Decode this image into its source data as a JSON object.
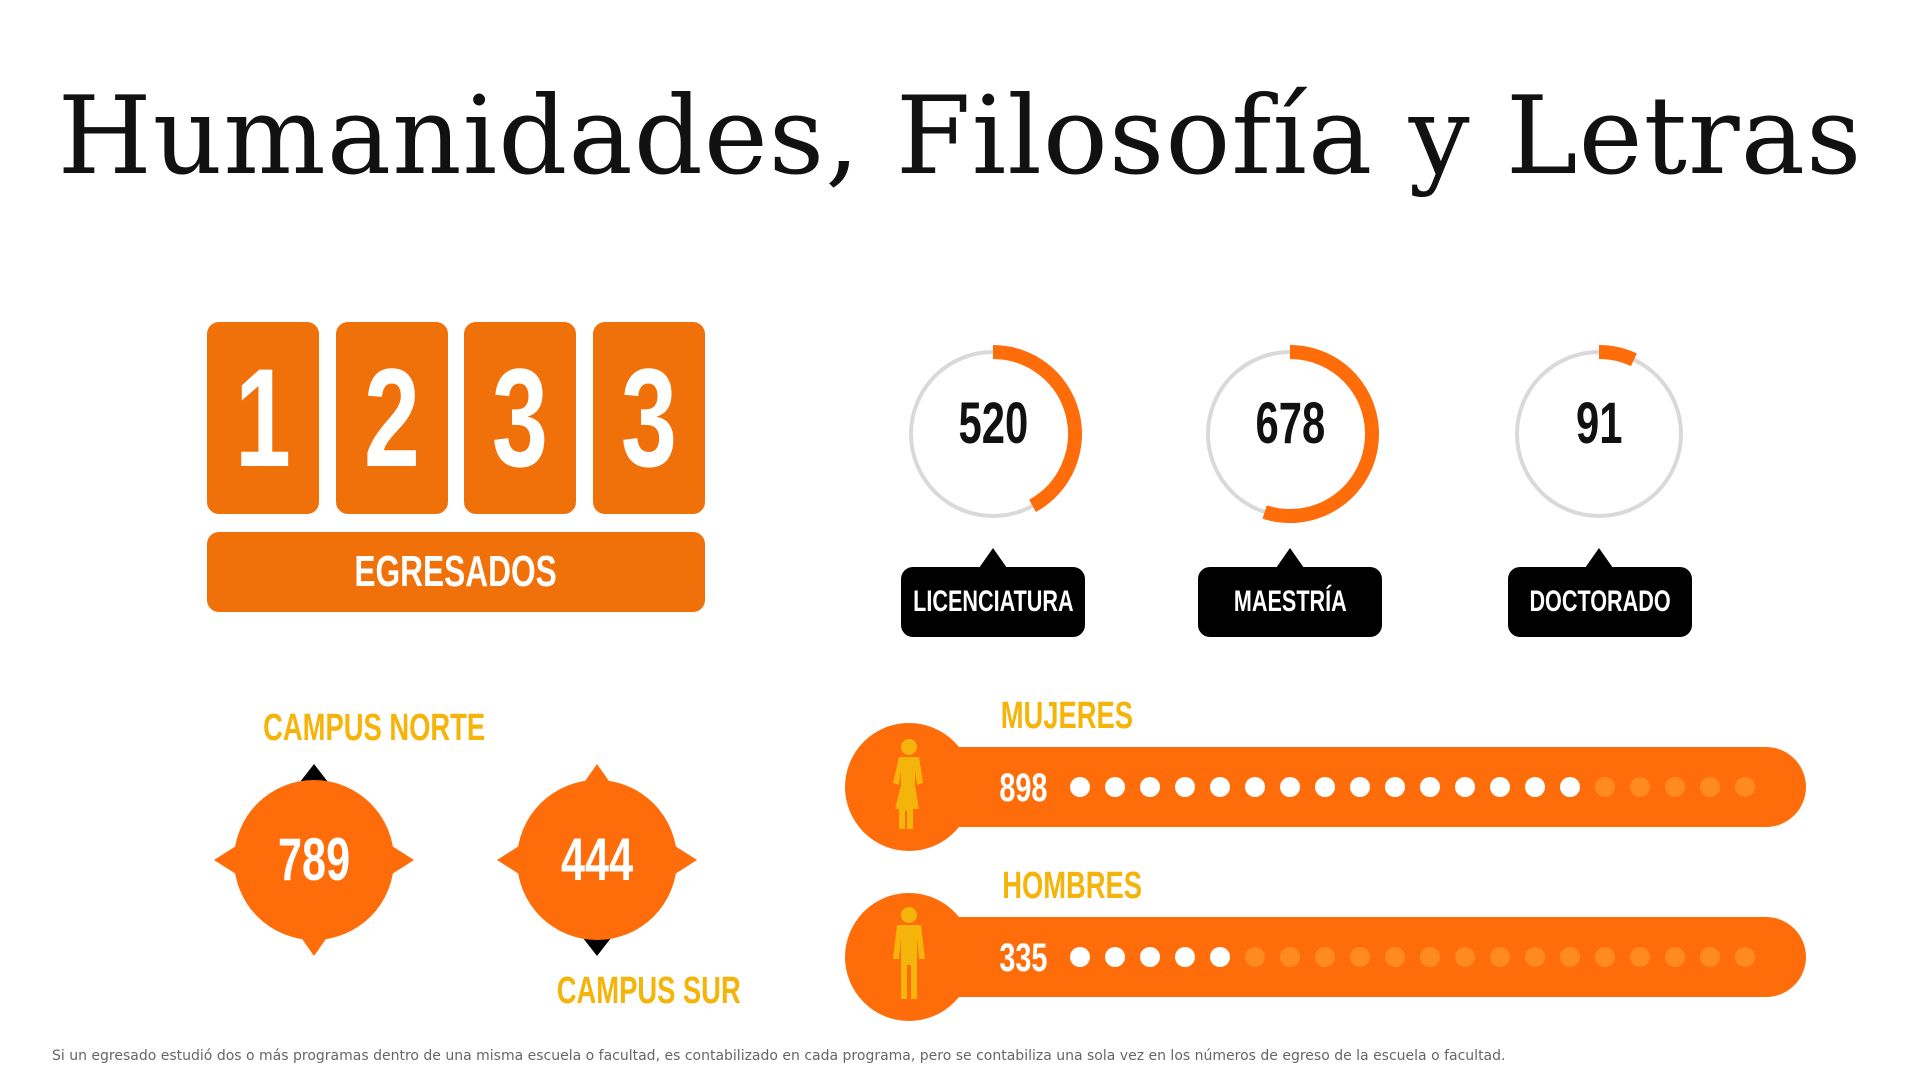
{
  "title": "Humanidades, Filosofía y Letras",
  "graduates": {
    "digits": [
      "1",
      "2",
      "3",
      "3"
    ],
    "label": "EGRESADOS"
  },
  "levels": [
    {
      "value": "520",
      "label": "LICENCIATURA",
      "fraction": 0.42
    },
    {
      "value": "678",
      "label": "MAESTRÍA",
      "fraction": 0.55
    },
    {
      "value": "91",
      "label": "DOCTORADO",
      "fraction": 0.07
    }
  ],
  "campus": {
    "norte": {
      "label": "CAMPUS NORTE",
      "value": "789"
    },
    "sur": {
      "label": "CAMPUS SUR",
      "value": "444"
    }
  },
  "gender": {
    "mujeres": {
      "label": "MUJERES",
      "value": "898",
      "dots_filled": 15,
      "dots_total": 20
    },
    "hombres": {
      "label": "HOMBRES",
      "value": "335",
      "dots_filled": 5,
      "dots_total": 20
    }
  },
  "colors": {
    "orange": "#f0700a",
    "bright_orange": "#ff6d0a",
    "yellow": "#f5b40a",
    "black": "#000000",
    "ring_gray": "#d9d9d9"
  },
  "icons": {
    "mujeres": "woman-icon",
    "hombres": "man-icon"
  },
  "footnote": "Si un egresado estudió dos o más programas dentro de una misma escuela o facultad, es contabilizado en cada programa, pero se contabiliza una sola vez en los números de egreso de la escuela o facultad."
}
